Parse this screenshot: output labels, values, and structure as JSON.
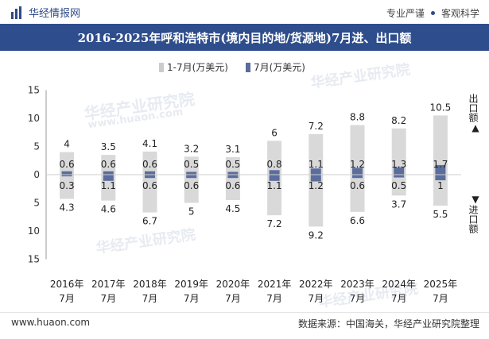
{
  "header": {
    "logo_text": "华经情报网",
    "badge1": "专业严谨",
    "badge2": "客观科学"
  },
  "title": "2016-2025年呼和浩特市(境内目的地/货源地)7月进、出口额",
  "legend": {
    "cumulative": "1-7月(万美元)",
    "monthly": "7月(万美元)"
  },
  "side_labels": {
    "export": "出口额",
    "import": "进口额",
    "export_arrow": "▲",
    "import_arrow": "▼"
  },
  "watermark": {
    "text": "华经产业研究院",
    "url": "www.huaon.com"
  },
  "footer": {
    "url": "www.huaon.com",
    "source": "数据来源：中国海关，华经产业研究院整理"
  },
  "colors": {
    "title_bg": "#2e4d8c",
    "cumulative_bar": "#d9d9d9",
    "monthly_bar": "#5b6d9c",
    "axis": "#999999"
  },
  "chart_data": {
    "type": "bar",
    "title": "2016-2025年呼和浩特市(境内目的地/货源地)7月进、出口额",
    "categories": [
      "2016年\n7月",
      "2017年\n7月",
      "2018年\n7月",
      "2019年\n7月",
      "2020年\n7月",
      "2021年\n7月",
      "2022年\n7月",
      "2023年\n7月",
      "2024年\n7月",
      "2025年\n7月"
    ],
    "category_lines": [
      [
        "2016年",
        "7月"
      ],
      [
        "2017年",
        "7月"
      ],
      [
        "2018年",
        "7月"
      ],
      [
        "2019年",
        "7月"
      ],
      [
        "2020年",
        "7月"
      ],
      [
        "2021年",
        "7月"
      ],
      [
        "2022年",
        "7月"
      ],
      [
        "2023年",
        "7月"
      ],
      [
        "2024年",
        "7月"
      ],
      [
        "2025年",
        "7月"
      ]
    ],
    "series": [
      {
        "name": "1-7月出口(万美元)",
        "values": [
          4,
          3.5,
          4.1,
          3.2,
          3.1,
          6,
          7.2,
          8.8,
          8.2,
          10.5
        ]
      },
      {
        "name": "1-7月进口(万美元)",
        "values": [
          4.3,
          4.6,
          6.7,
          5,
          4.5,
          7.2,
          9.2,
          6.6,
          3.7,
          5.5
        ]
      },
      {
        "name": "7月出口(万美元)",
        "values": [
          0.6,
          0.6,
          0.6,
          0.5,
          0.5,
          0.8,
          1.1,
          1.2,
          1.3,
          1.7
        ]
      },
      {
        "name": "7月进口(万美元)",
        "values": [
          0.3,
          1.1,
          0.6,
          0.6,
          0.6,
          1.1,
          1.2,
          0.6,
          0.5,
          1
        ]
      }
    ],
    "yticks": [
      15,
      10,
      5,
      0,
      5,
      10,
      15
    ],
    "ylim": [
      -15,
      15
    ],
    "xlabel": "",
    "ylabel": ""
  }
}
